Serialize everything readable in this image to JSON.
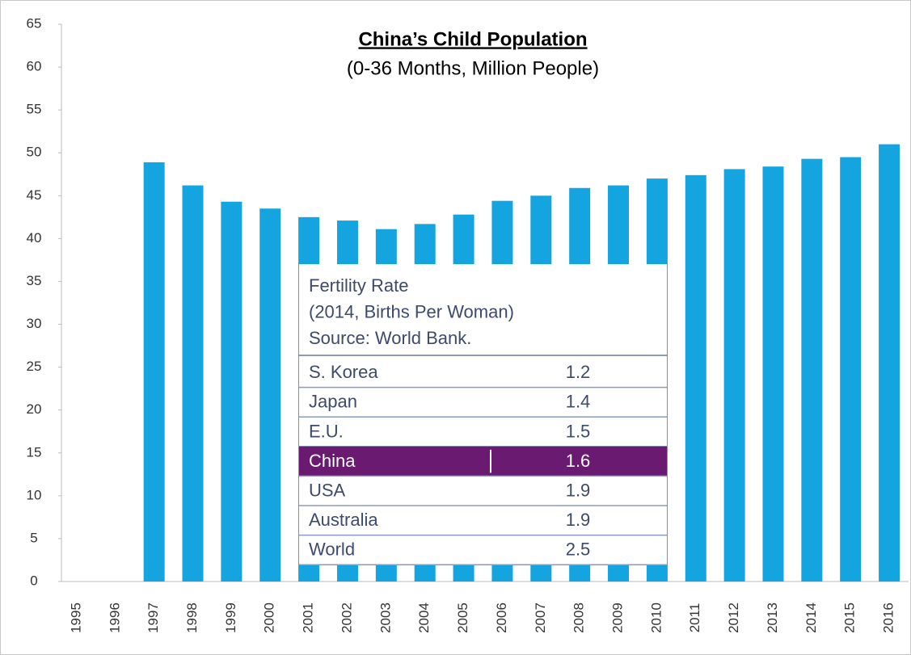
{
  "chart_data": {
    "type": "bar",
    "title": "China’s Child Population",
    "subtitle": "(0-36 Months, Million People)",
    "categories": [
      "1995",
      "1996",
      "1997",
      "1998",
      "1999",
      "2000",
      "2001",
      "2002",
      "2003",
      "2004",
      "2005",
      "2006",
      "2007",
      "2008",
      "2009",
      "2010",
      "2011",
      "2012",
      "2013",
      "2014",
      "2015",
      "2016"
    ],
    "values": [
      null,
      null,
      48.9,
      46.2,
      44.3,
      43.5,
      42.5,
      42.1,
      41.1,
      41.7,
      42.8,
      44.4,
      45.0,
      45.9,
      46.2,
      47.0,
      47.4,
      48.1,
      48.4,
      49.3,
      49.5,
      51.0
    ],
    "color": "#14a5e0",
    "ylim": [
      0,
      65
    ],
    "yticks": [
      0,
      5,
      10,
      15,
      20,
      25,
      30,
      35,
      40,
      45,
      50,
      55,
      60,
      65
    ],
    "grid": false,
    "table": {
      "title": [
        "Fertility  Rate",
        "(2014, Births Per Woman)",
        "Source: World Bank."
      ],
      "rows": [
        [
          "S. Korea",
          1.2
        ],
        [
          "Japan",
          1.4
        ],
        [
          "E.U.",
          1.5
        ],
        [
          "China",
          1.6
        ],
        [
          "USA",
          1.9
        ],
        [
          "Australia",
          1.9
        ],
        [
          "World",
          2.5
        ]
      ],
      "highlight_row": 3,
      "highlight_color": "#6b1a72"
    }
  }
}
